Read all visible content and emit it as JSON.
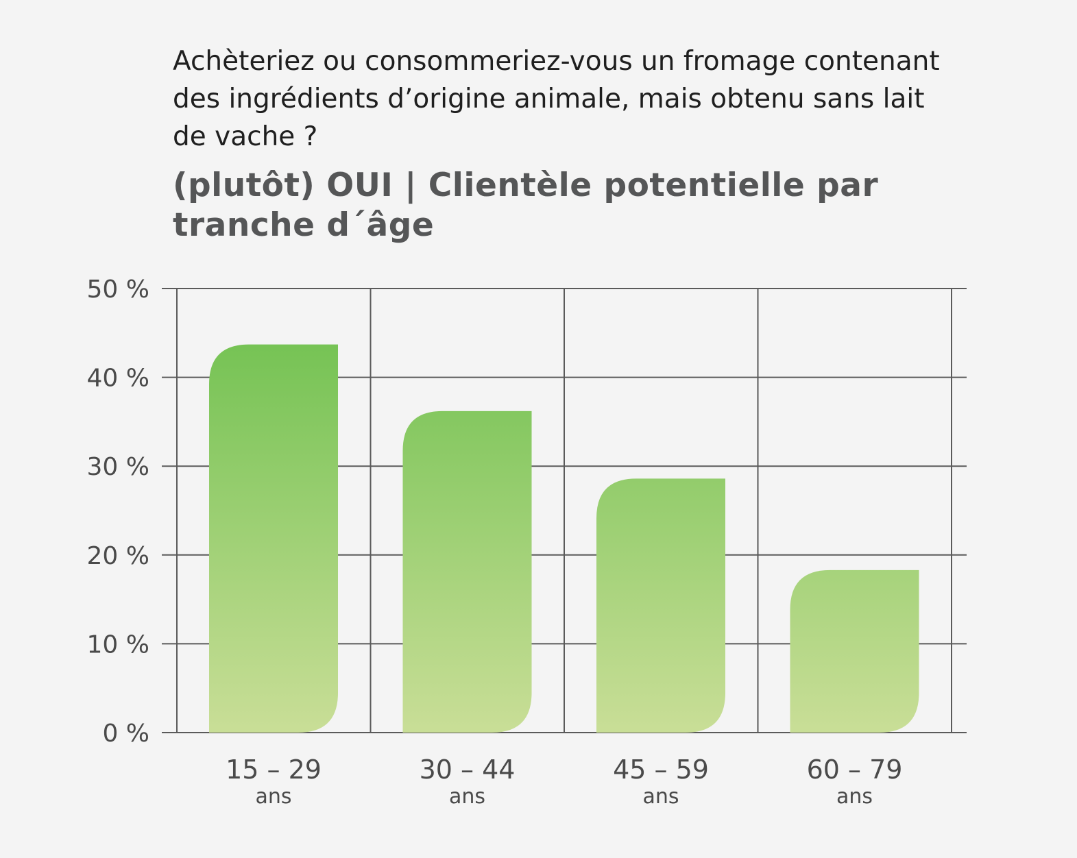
{
  "question": "Achèteriez ou consommeriez-vous un fromage contenant des ingrédients d’origine animale, mais obtenu sans lait de vache ?",
  "headline": "(plutôt) OUI | Clientèle potentielle par tranche d´âge",
  "colors": {
    "background": "#f4f4f4",
    "grid": "#5a5a5a",
    "bar_top": "#6abf4b",
    "bar_bottom": "#c9de97",
    "text": "#4a4a4a"
  },
  "chart_data": {
    "type": "bar",
    "categories": [
      "15 – 29",
      "30 – 44",
      "45 – 59",
      "60 – 79"
    ],
    "category_sublabels": [
      "ans",
      "ans",
      "ans",
      "ans"
    ],
    "values": [
      43.7,
      36.2,
      28.6,
      18.3
    ],
    "y_ticks": [
      "0 %",
      "10 %",
      "20 %",
      "30 %",
      "40 %",
      "50 %"
    ],
    "ylim": [
      0,
      50
    ],
    "grid": true,
    "legend": "none"
  }
}
